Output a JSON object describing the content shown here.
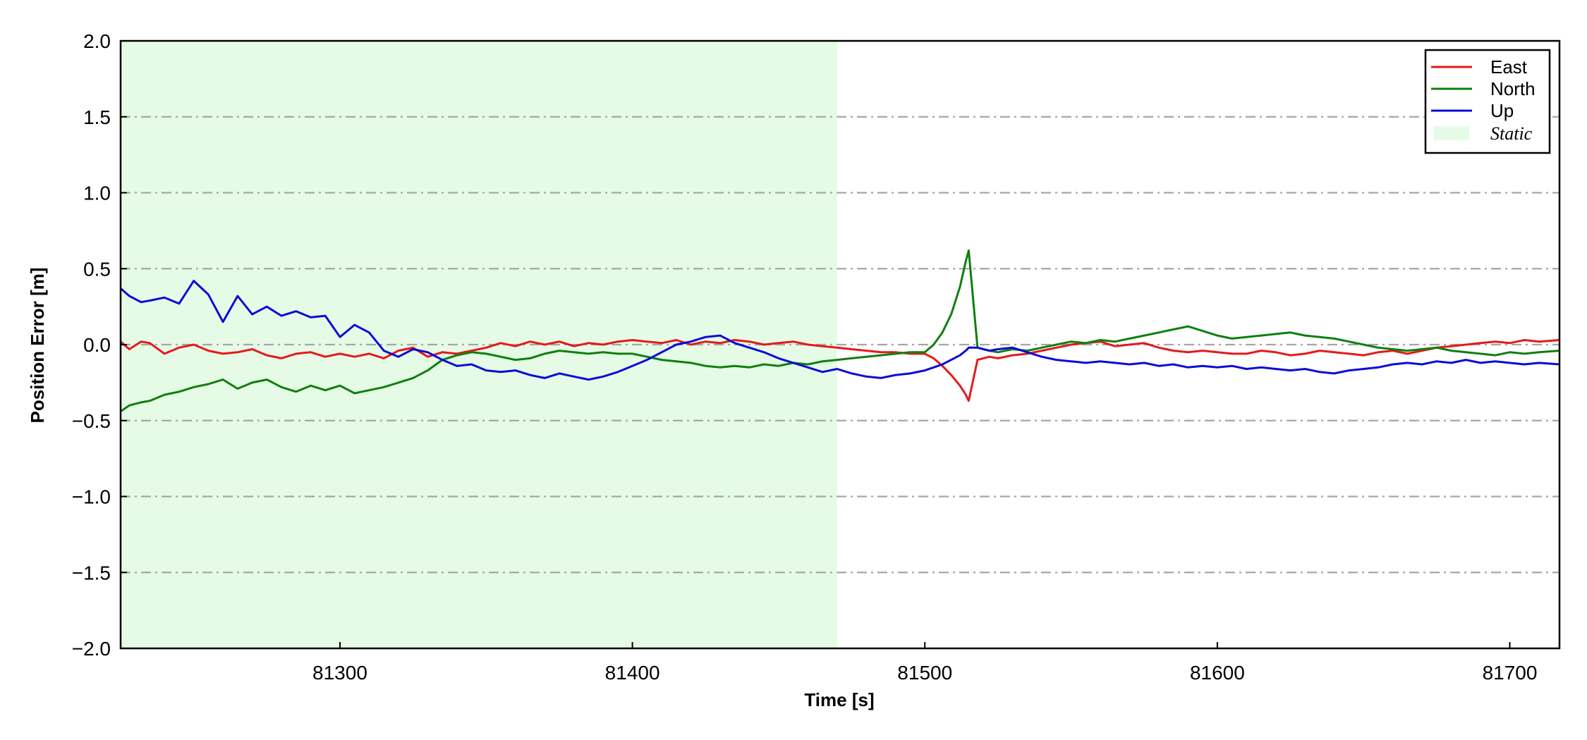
{
  "chart_data": {
    "type": "line",
    "title": "",
    "xlabel": "Time [s]",
    "ylabel": "Position Error [m]",
    "xlim": [
      81225,
      81717
    ],
    "ylim": [
      -2.0,
      2.0
    ],
    "xticks": [
      81300,
      81400,
      81500,
      81600,
      81700
    ],
    "xtick_labels": [
      "81300",
      "81400",
      "81500",
      "81600",
      "81700"
    ],
    "yticks": [
      -2.0,
      -1.5,
      -1.0,
      -0.5,
      0.0,
      0.5,
      1.0,
      1.5,
      2.0
    ],
    "ytick_labels": [
      "−2.0",
      "−1.5",
      "−1.0",
      "−0.5",
      "0.0",
      "0.5",
      "1.0",
      "1.5",
      "2.0"
    ],
    "grid": "horizontal dash-dot",
    "legend_position": "top-right",
    "shaded_region": {
      "label": "Static",
      "x_start": 81225,
      "x_end": 81470,
      "color": "#e6fbe6"
    },
    "series": [
      {
        "name": "East",
        "color": "#e31a1c",
        "x": [
          81225,
          81228,
          81232,
          81235,
          81240,
          81245,
          81250,
          81255,
          81260,
          81265,
          81270,
          81275,
          81280,
          81285,
          81290,
          81295,
          81300,
          81305,
          81310,
          81315,
          81320,
          81325,
          81330,
          81335,
          81340,
          81345,
          81350,
          81355,
          81360,
          81365,
          81370,
          81375,
          81380,
          81385,
          81390,
          81395,
          81400,
          81405,
          81410,
          81415,
          81420,
          81425,
          81430,
          81435,
          81440,
          81445,
          81450,
          81455,
          81460,
          81465,
          81470,
          81475,
          81480,
          81485,
          81490,
          81495,
          81500,
          81503,
          81506,
          81509,
          81512,
          81514,
          81515,
          81518,
          81522,
          81525,
          81530,
          81535,
          81540,
          81545,
          81550,
          81555,
          81560,
          81565,
          81570,
          81575,
          81580,
          81585,
          81590,
          81595,
          81600,
          81605,
          81610,
          81615,
          81620,
          81625,
          81630,
          81635,
          81640,
          81645,
          81650,
          81655,
          81660,
          81665,
          81670,
          81675,
          81680,
          81685,
          81690,
          81695,
          81700,
          81705,
          81710,
          81717
        ],
        "y": [
          0.02,
          -0.03,
          0.02,
          0.01,
          -0.06,
          -0.02,
          0.0,
          -0.04,
          -0.06,
          -0.05,
          -0.03,
          -0.07,
          -0.09,
          -0.06,
          -0.05,
          -0.08,
          -0.06,
          -0.08,
          -0.06,
          -0.09,
          -0.04,
          -0.02,
          -0.08,
          -0.05,
          -0.06,
          -0.04,
          -0.02,
          0.01,
          -0.01,
          0.02,
          0.0,
          0.02,
          -0.01,
          0.01,
          0.0,
          0.02,
          0.03,
          0.02,
          0.01,
          0.03,
          0.0,
          0.02,
          0.01,
          0.03,
          0.02,
          0.0,
          0.01,
          0.02,
          0.0,
          -0.01,
          -0.02,
          -0.03,
          -0.04,
          -0.05,
          -0.05,
          -0.06,
          -0.06,
          -0.09,
          -0.14,
          -0.2,
          -0.27,
          -0.33,
          -0.37,
          -0.1,
          -0.08,
          -0.09,
          -0.07,
          -0.06,
          -0.04,
          -0.02,
          0.0,
          0.01,
          0.02,
          -0.01,
          0.0,
          0.01,
          -0.02,
          -0.04,
          -0.05,
          -0.04,
          -0.05,
          -0.06,
          -0.06,
          -0.04,
          -0.05,
          -0.07,
          -0.06,
          -0.04,
          -0.05,
          -0.06,
          -0.07,
          -0.05,
          -0.04,
          -0.06,
          -0.04,
          -0.02,
          -0.01,
          0.0,
          0.01,
          0.02,
          0.01,
          0.03,
          0.02,
          0.03
        ]
      },
      {
        "name": "North",
        "color": "#0f7f0f",
        "x": [
          81225,
          81228,
          81232,
          81235,
          81240,
          81245,
          81250,
          81255,
          81260,
          81265,
          81270,
          81275,
          81280,
          81285,
          81290,
          81295,
          81300,
          81305,
          81310,
          81315,
          81320,
          81325,
          81330,
          81335,
          81340,
          81345,
          81350,
          81355,
          81360,
          81365,
          81370,
          81375,
          81380,
          81385,
          81390,
          81395,
          81400,
          81405,
          81410,
          81415,
          81420,
          81425,
          81430,
          81435,
          81440,
          81445,
          81450,
          81455,
          81460,
          81465,
          81470,
          81475,
          81480,
          81485,
          81490,
          81495,
          81500,
          81503,
          81506,
          81509,
          81512,
          81514,
          81515,
          81518,
          81522,
          81525,
          81530,
          81535,
          81540,
          81545,
          81550,
          81555,
          81560,
          81565,
          81570,
          81575,
          81580,
          81585,
          81590,
          81595,
          81600,
          81605,
          81610,
          81615,
          81620,
          81625,
          81630,
          81635,
          81640,
          81645,
          81650,
          81655,
          81660,
          81665,
          81670,
          81675,
          81680,
          81685,
          81690,
          81695,
          81700,
          81705,
          81710,
          81717
        ],
        "y": [
          -0.44,
          -0.4,
          -0.38,
          -0.37,
          -0.33,
          -0.31,
          -0.28,
          -0.26,
          -0.23,
          -0.29,
          -0.25,
          -0.23,
          -0.28,
          -0.31,
          -0.27,
          -0.3,
          -0.27,
          -0.32,
          -0.3,
          -0.28,
          -0.25,
          -0.22,
          -0.17,
          -0.1,
          -0.07,
          -0.05,
          -0.06,
          -0.08,
          -0.1,
          -0.09,
          -0.06,
          -0.04,
          -0.05,
          -0.06,
          -0.05,
          -0.06,
          -0.06,
          -0.08,
          -0.1,
          -0.11,
          -0.12,
          -0.14,
          -0.15,
          -0.14,
          -0.15,
          -0.13,
          -0.14,
          -0.12,
          -0.13,
          -0.11,
          -0.1,
          -0.09,
          -0.08,
          -0.07,
          -0.06,
          -0.05,
          -0.05,
          0.0,
          0.08,
          0.2,
          0.38,
          0.55,
          0.62,
          -0.02,
          -0.04,
          -0.05,
          -0.03,
          -0.04,
          -0.02,
          0.0,
          0.02,
          0.01,
          0.03,
          0.02,
          0.04,
          0.06,
          0.08,
          0.1,
          0.12,
          0.09,
          0.06,
          0.04,
          0.05,
          0.06,
          0.07,
          0.08,
          0.06,
          0.05,
          0.04,
          0.02,
          0.0,
          -0.02,
          -0.03,
          -0.04,
          -0.03,
          -0.02,
          -0.04,
          -0.05,
          -0.06,
          -0.07,
          -0.05,
          -0.06,
          -0.05,
          -0.04
        ]
      },
      {
        "name": "Up",
        "color": "#0b0bd8",
        "x": [
          81225,
          81228,
          81232,
          81235,
          81240,
          81245,
          81250,
          81255,
          81260,
          81265,
          81270,
          81275,
          81280,
          81285,
          81290,
          81295,
          81300,
          81305,
          81310,
          81315,
          81320,
          81325,
          81330,
          81335,
          81340,
          81345,
          81350,
          81355,
          81360,
          81365,
          81370,
          81375,
          81380,
          81385,
          81390,
          81395,
          81400,
          81405,
          81410,
          81415,
          81420,
          81425,
          81430,
          81435,
          81440,
          81445,
          81450,
          81455,
          81460,
          81465,
          81470,
          81475,
          81480,
          81485,
          81490,
          81495,
          81500,
          81503,
          81506,
          81509,
          81512,
          81514,
          81515,
          81518,
          81522,
          81525,
          81530,
          81535,
          81540,
          81545,
          81550,
          81555,
          81560,
          81565,
          81570,
          81575,
          81580,
          81585,
          81590,
          81595,
          81600,
          81605,
          81610,
          81615,
          81620,
          81625,
          81630,
          81635,
          81640,
          81645,
          81650,
          81655,
          81660,
          81665,
          81670,
          81675,
          81680,
          81685,
          81690,
          81695,
          81700,
          81705,
          81710,
          81717
        ],
        "y": [
          0.37,
          0.32,
          0.28,
          0.29,
          0.31,
          0.27,
          0.42,
          0.33,
          0.15,
          0.32,
          0.2,
          0.25,
          0.19,
          0.22,
          0.18,
          0.19,
          0.05,
          0.13,
          0.08,
          -0.04,
          -0.08,
          -0.03,
          -0.05,
          -0.1,
          -0.14,
          -0.13,
          -0.17,
          -0.18,
          -0.17,
          -0.2,
          -0.22,
          -0.19,
          -0.21,
          -0.23,
          -0.21,
          -0.18,
          -0.14,
          -0.1,
          -0.05,
          0.0,
          0.02,
          0.05,
          0.06,
          0.01,
          -0.02,
          -0.05,
          -0.09,
          -0.12,
          -0.15,
          -0.18,
          -0.16,
          -0.19,
          -0.21,
          -0.22,
          -0.2,
          -0.19,
          -0.17,
          -0.15,
          -0.13,
          -0.1,
          -0.07,
          -0.04,
          -0.02,
          -0.02,
          -0.04,
          -0.03,
          -0.02,
          -0.05,
          -0.08,
          -0.1,
          -0.11,
          -0.12,
          -0.11,
          -0.12,
          -0.13,
          -0.12,
          -0.14,
          -0.13,
          -0.15,
          -0.14,
          -0.15,
          -0.14,
          -0.16,
          -0.15,
          -0.16,
          -0.17,
          -0.16,
          -0.18,
          -0.19,
          -0.17,
          -0.16,
          -0.15,
          -0.13,
          -0.12,
          -0.13,
          -0.11,
          -0.12,
          -0.1,
          -0.12,
          -0.11,
          -0.12,
          -0.13,
          -0.12,
          -0.13
        ]
      }
    ]
  }
}
